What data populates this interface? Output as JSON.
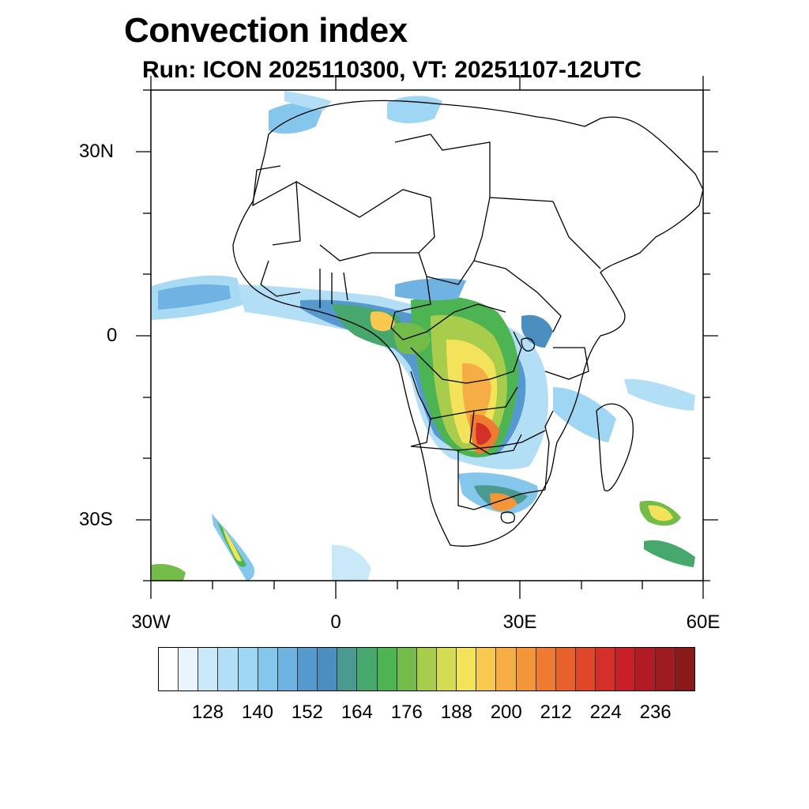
{
  "title": "Convection index",
  "subtitle": "Run: ICON 2025110300,  VT: 20251107-12UTC",
  "map": {
    "lat_labels": [
      "30N",
      "0",
      "30S"
    ],
    "lon_labels": [
      "30W",
      "0",
      "30E",
      "60E"
    ],
    "region": "Africa"
  },
  "colorbar": {
    "colors": [
      "#ffffff",
      "#e8f5fc",
      "#c9e8f8",
      "#b3dff6",
      "#9ed6f3",
      "#85c6ec",
      "#6fb3e2",
      "#5599cf",
      "#4a8fbf",
      "#4a9a92",
      "#47a86e",
      "#4cb452",
      "#73bc4a",
      "#a8cc4b",
      "#d6dc52",
      "#f2e35a",
      "#f9c94f",
      "#f6ad43",
      "#f39539",
      "#ee7b31",
      "#e8602c",
      "#e14629",
      "#d52f29",
      "#c81f28",
      "#b31b24",
      "#9e1b1f",
      "#8a1a1a"
    ],
    "labels": [
      "128",
      "140",
      "152",
      "164",
      "176",
      "188",
      "200",
      "212",
      "224",
      "236"
    ]
  }
}
